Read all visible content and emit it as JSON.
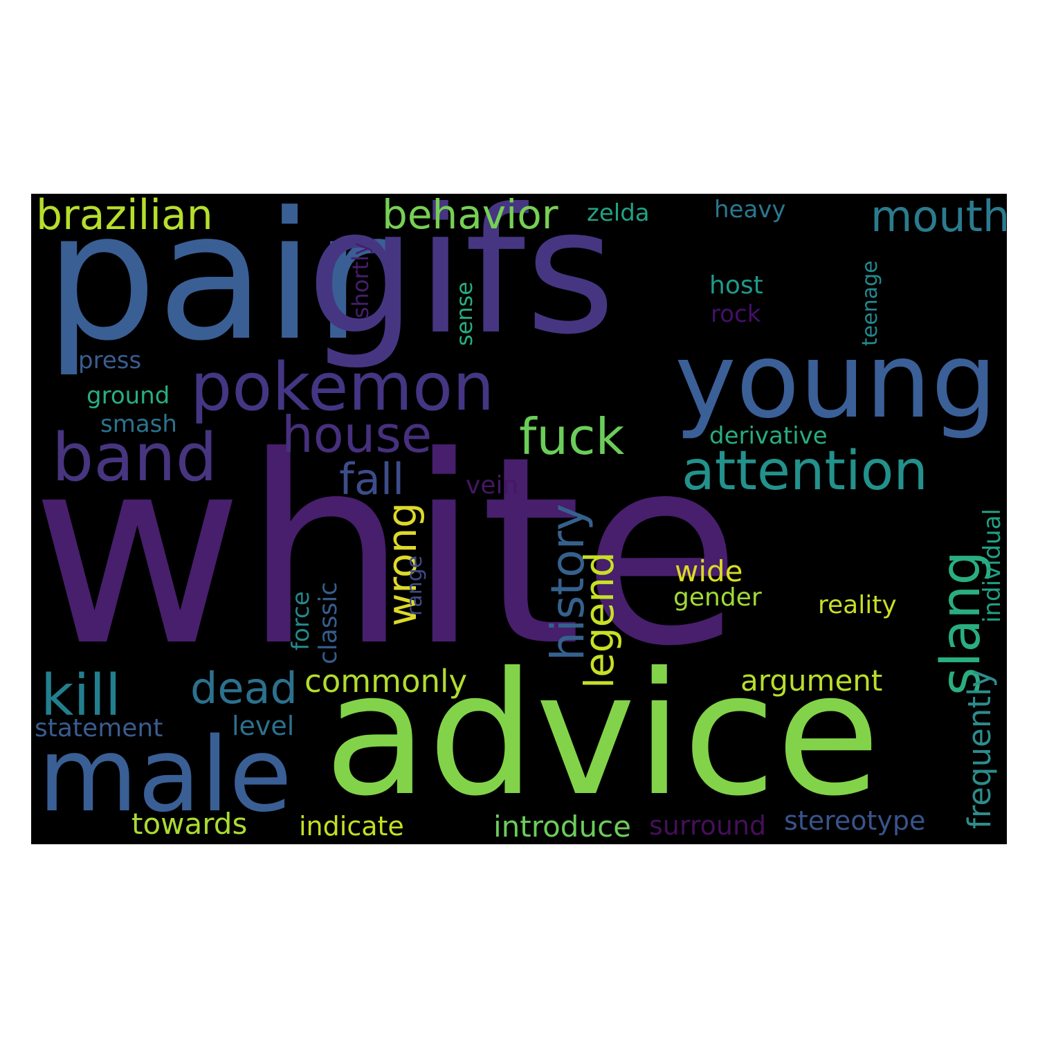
{
  "colors": {
    "background": "#000000",
    "page": "#ffffff"
  },
  "words": [
    {
      "text": "pair",
      "color": "#3a5f95"
    },
    {
      "text": "gifs",
      "color": "#463682"
    },
    {
      "text": "white",
      "color": "#471f6c"
    },
    {
      "text": "advice",
      "color": "#82d34a"
    },
    {
      "text": "young",
      "color": "#3b5f97"
    },
    {
      "text": "pokemon",
      "color": "#443683"
    },
    {
      "text": "male",
      "color": "#3a5f95"
    },
    {
      "text": "band",
      "color": "#47357f"
    },
    {
      "text": "attention",
      "color": "#23918c"
    },
    {
      "text": "house",
      "color": "#47307e"
    },
    {
      "text": "fuck",
      "color": "#6bcd59"
    },
    {
      "text": "brazilian",
      "color": "#b6de2c"
    },
    {
      "text": "behavior",
      "color": "#76d054"
    },
    {
      "text": "mouth",
      "color": "#2b7b8e"
    },
    {
      "text": "kill",
      "color": "#227f8e"
    },
    {
      "text": "dead",
      "color": "#2c718e"
    },
    {
      "text": "slang",
      "color": "#2aae7f"
    },
    {
      "text": "history",
      "color": "#35618d"
    },
    {
      "text": "fall",
      "color": "#3c4d8a"
    },
    {
      "text": "legend",
      "color": "#c7e025"
    },
    {
      "text": "wrong",
      "color": "#ddd92b"
    },
    {
      "text": "frequently",
      "color": "#2d8d8c"
    },
    {
      "text": "commonly",
      "color": "#b2dd2d"
    },
    {
      "text": "argument",
      "color": "#b8df2a"
    },
    {
      "text": "towards",
      "color": "#aadc32"
    },
    {
      "text": "introduce",
      "color": "#6bcd59"
    },
    {
      "text": "stereotype",
      "color": "#39548b"
    },
    {
      "text": "indicate",
      "color": "#c5e021"
    },
    {
      "text": "surround",
      "color": "#450f5a"
    },
    {
      "text": "statement",
      "color": "#3a5c90"
    },
    {
      "text": "level",
      "color": "#2c718e"
    },
    {
      "text": "wide",
      "color": "#d9dd20"
    },
    {
      "text": "gender",
      "color": "#a2da37"
    },
    {
      "text": "reality",
      "color": "#c9df25"
    },
    {
      "text": "individual",
      "color": "#21a085"
    },
    {
      "text": "classic",
      "color": "#355c8c"
    },
    {
      "text": "force",
      "color": "#24898d"
    },
    {
      "text": "range",
      "color": "#3e4b89"
    },
    {
      "text": "vein",
      "color": "#451764"
    },
    {
      "text": "derivative",
      "color": "#27ad80"
    },
    {
      "text": "press",
      "color": "#3a5d90"
    },
    {
      "text": "ground",
      "color": "#29af7f"
    },
    {
      "text": "smash",
      "color": "#2c738e"
    },
    {
      "text": "sense",
      "color": "#28ae80"
    },
    {
      "text": "shortly",
      "color": "#461e6b"
    },
    {
      "text": "zelda",
      "color": "#22a284"
    },
    {
      "text": "heavy",
      "color": "#2a788e"
    },
    {
      "text": "host",
      "color": "#1f9a8a"
    },
    {
      "text": "rock",
      "color": "#45106a"
    },
    {
      "text": "teenage",
      "color": "#23898e"
    }
  ]
}
